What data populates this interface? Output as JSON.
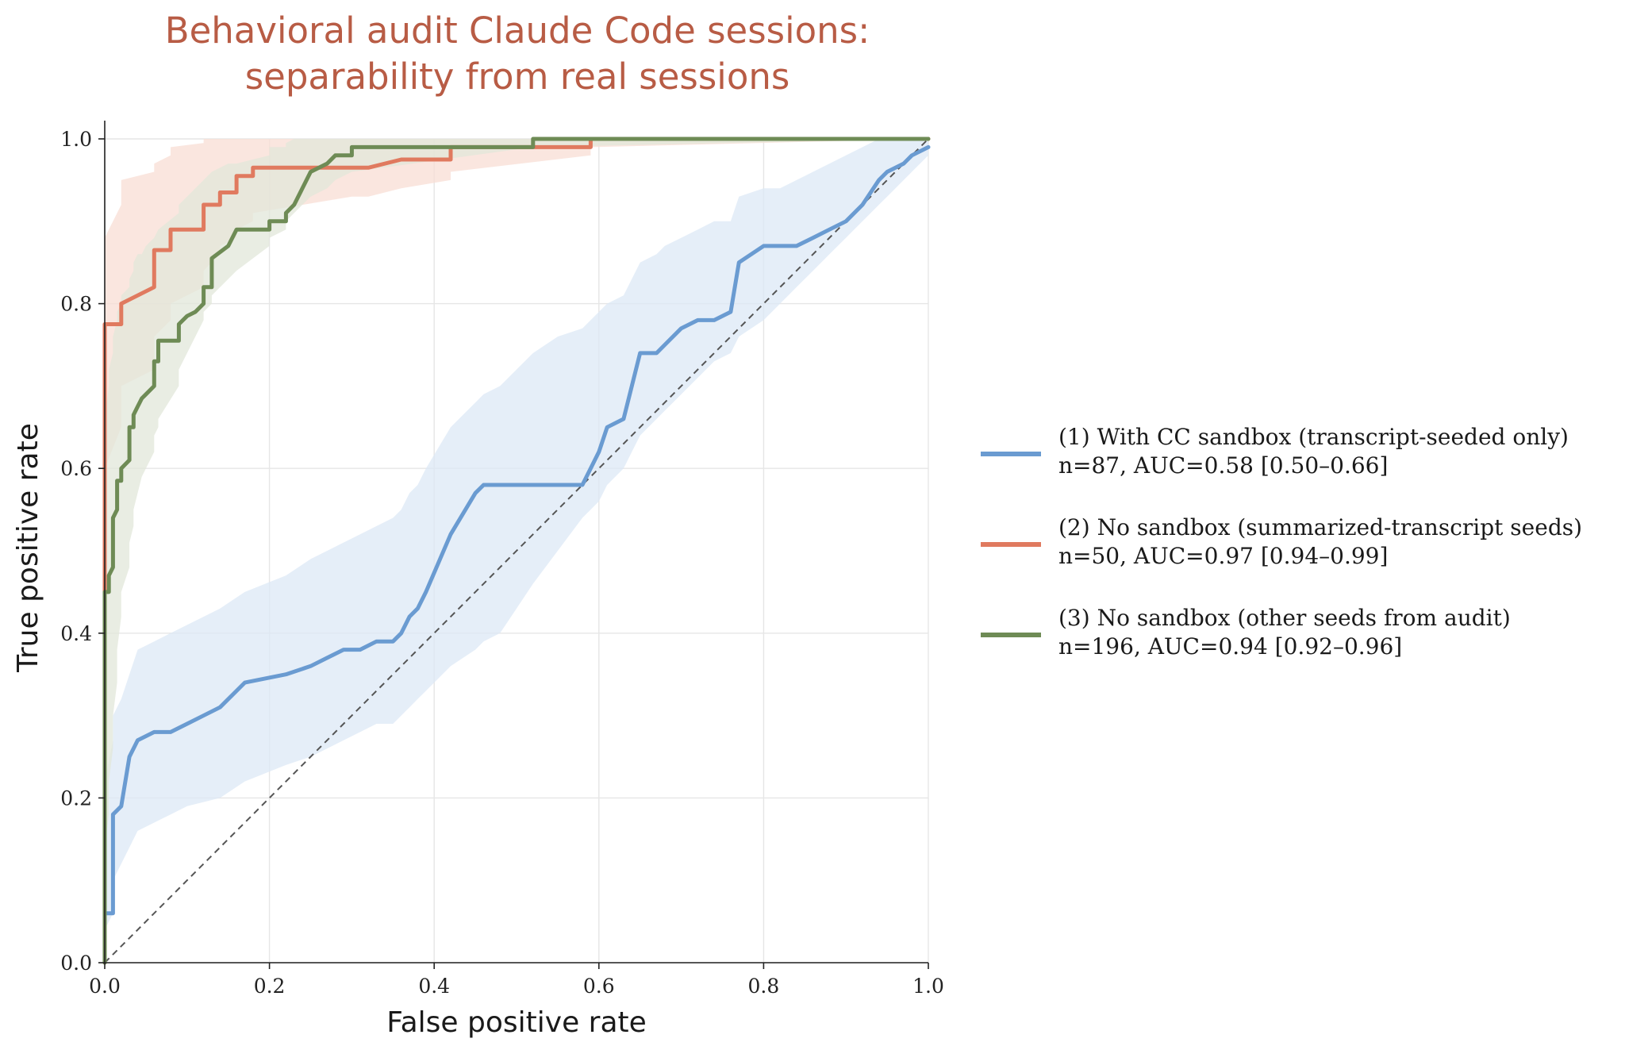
{
  "chart_data": {
    "type": "line",
    "title": [
      "Behavioral audit Claude Code sessions:",
      "separability from real sessions"
    ],
    "xlabel": "False positive rate",
    "ylabel": "True positive rate",
    "xlim": [
      0,
      1
    ],
    "ylim": [
      0,
      1
    ],
    "xticks": [
      "0.0",
      "0.2",
      "0.4",
      "0.6",
      "0.8",
      "1.0"
    ],
    "yticks": [
      "0.0",
      "0.2",
      "0.4",
      "0.6",
      "0.8",
      "1.0"
    ],
    "grid": true,
    "legend_position": "right",
    "diagonal": {
      "style": "dashed",
      "color": "#555555",
      "points": [
        [
          0,
          0
        ],
        [
          1,
          1
        ]
      ]
    },
    "series": [
      {
        "name": "(1) With CC sandbox (transcript-seeded only)",
        "stats": "n=87, AUC=0.58 [0.50–0.66]",
        "color": "#6A9BD1",
        "band_color": "#DCE8F5",
        "x": [
          0,
          0,
          0.01,
          0.01,
          0.02,
          0.03,
          0.04,
          0.06,
          0.08,
          0.1,
          0.14,
          0.17,
          0.22,
          0.25,
          0.27,
          0.29,
          0.31,
          0.33,
          0.35,
          0.36,
          0.37,
          0.38,
          0.39,
          0.42,
          0.45,
          0.46,
          0.48,
          0.5,
          0.52,
          0.55,
          0.58,
          0.59,
          0.6,
          0.61,
          0.63,
          0.64,
          0.65,
          0.67,
          0.68,
          0.7,
          0.72,
          0.74,
          0.76,
          0.77,
          0.8,
          0.82,
          0.84,
          0.86,
          0.88,
          0.9,
          0.92,
          0.94,
          0.95,
          0.97,
          0.98,
          1.0
        ],
        "y": [
          0,
          0.06,
          0.06,
          0.18,
          0.19,
          0.25,
          0.27,
          0.28,
          0.28,
          0.29,
          0.31,
          0.34,
          0.35,
          0.36,
          0.37,
          0.38,
          0.38,
          0.39,
          0.39,
          0.4,
          0.42,
          0.43,
          0.45,
          0.52,
          0.57,
          0.58,
          0.58,
          0.58,
          0.58,
          0.58,
          0.58,
          0.6,
          0.62,
          0.65,
          0.66,
          0.7,
          0.74,
          0.74,
          0.75,
          0.77,
          0.78,
          0.78,
          0.79,
          0.85,
          0.87,
          0.87,
          0.87,
          0.88,
          0.89,
          0.9,
          0.92,
          0.95,
          0.96,
          0.97,
          0.98,
          0.99
        ],
        "band_lower": [
          0.02,
          0.04,
          0.06,
          0.1,
          0.12,
          0.14,
          0.16,
          0.17,
          0.18,
          0.19,
          0.2,
          0.22,
          0.24,
          0.25,
          0.26,
          0.27,
          0.28,
          0.29,
          0.29,
          0.3,
          0.31,
          0.32,
          0.33,
          0.36,
          0.38,
          0.39,
          0.4,
          0.43,
          0.46,
          0.5,
          0.54,
          0.55,
          0.56,
          0.58,
          0.6,
          0.62,
          0.64,
          0.66,
          0.67,
          0.69,
          0.71,
          0.73,
          0.74,
          0.76,
          0.78,
          0.8,
          0.82,
          0.84,
          0.86,
          0.88,
          0.9,
          0.92,
          0.93,
          0.95,
          0.96,
          0.98
        ],
        "band_upper": [
          0.15,
          0.22,
          0.27,
          0.3,
          0.32,
          0.35,
          0.38,
          0.39,
          0.4,
          0.41,
          0.43,
          0.45,
          0.47,
          0.49,
          0.5,
          0.51,
          0.52,
          0.53,
          0.54,
          0.55,
          0.57,
          0.58,
          0.6,
          0.65,
          0.68,
          0.69,
          0.7,
          0.72,
          0.74,
          0.76,
          0.77,
          0.78,
          0.79,
          0.8,
          0.81,
          0.83,
          0.85,
          0.86,
          0.87,
          0.88,
          0.89,
          0.9,
          0.9,
          0.93,
          0.94,
          0.94,
          0.95,
          0.96,
          0.97,
          0.98,
          0.99,
          1.0,
          1.0,
          1.0,
          1.0,
          1.0
        ]
      },
      {
        "name": "(2) No sandbox (summarized-transcript seeds)",
        "stats": "n=50, AUC=0.97 [0.94–0.99]",
        "color": "#E07A5F",
        "band_color": "#F8DDD4",
        "x": [
          0,
          0,
          0.02,
          0.02,
          0.06,
          0.06,
          0.08,
          0.08,
          0.12,
          0.12,
          0.14,
          0.14,
          0.16,
          0.16,
          0.18,
          0.18,
          0.3,
          0.32,
          0.36,
          0.36,
          0.42,
          0.42,
          0.59,
          0.59,
          1.0
        ],
        "y": [
          0,
          0.775,
          0.775,
          0.8,
          0.82,
          0.865,
          0.865,
          0.89,
          0.89,
          0.92,
          0.92,
          0.935,
          0.935,
          0.955,
          0.955,
          0.965,
          0.965,
          0.965,
          0.975,
          0.975,
          0.975,
          0.99,
          0.99,
          1.0,
          1.0
        ],
        "band_lower": [
          0.45,
          0.6,
          0.65,
          0.7,
          0.72,
          0.76,
          0.78,
          0.8,
          0.82,
          0.84,
          0.86,
          0.87,
          0.88,
          0.89,
          0.9,
          0.91,
          0.93,
          0.93,
          0.94,
          0.94,
          0.95,
          0.96,
          0.98,
          0.99,
          1.0
        ],
        "band_upper": [
          0.88,
          0.88,
          0.92,
          0.95,
          0.96,
          0.97,
          0.98,
          0.99,
          0.995,
          1.0,
          1.0,
          1.0,
          1.0,
          1.0,
          1.0,
          1.0,
          1.0,
          1.0,
          1.0,
          1.0,
          1.0,
          1.0,
          1.0,
          1.0,
          1.0
        ]
      },
      {
        "name": "(3) No sandbox (other seeds from audit)",
        "stats": "n=196, AUC=0.94 [0.92–0.96]",
        "color": "#6E8B55",
        "band_color": "#E2E7DA",
        "x": [
          0,
          0,
          0.005,
          0.005,
          0.01,
          0.01,
          0.015,
          0.015,
          0.02,
          0.02,
          0.03,
          0.03,
          0.035,
          0.035,
          0.04,
          0.045,
          0.05,
          0.06,
          0.06,
          0.065,
          0.065,
          0.09,
          0.09,
          0.1,
          0.11,
          0.12,
          0.12,
          0.13,
          0.13,
          0.15,
          0.16,
          0.2,
          0.2,
          0.22,
          0.22,
          0.23,
          0.24,
          0.25,
          0.27,
          0.28,
          0.3,
          0.3,
          0.52,
          0.52,
          1.0
        ],
        "y": [
          0,
          0.45,
          0.45,
          0.47,
          0.48,
          0.54,
          0.55,
          0.585,
          0.585,
          0.6,
          0.61,
          0.65,
          0.65,
          0.665,
          0.675,
          0.685,
          0.69,
          0.7,
          0.73,
          0.73,
          0.755,
          0.755,
          0.775,
          0.785,
          0.79,
          0.8,
          0.82,
          0.82,
          0.855,
          0.87,
          0.89,
          0.89,
          0.9,
          0.9,
          0.91,
          0.92,
          0.94,
          0.96,
          0.97,
          0.98,
          0.98,
          0.99,
          0.99,
          1.0,
          1.0
        ],
        "band_lower": [
          0.05,
          0.14,
          0.18,
          0.22,
          0.26,
          0.3,
          0.34,
          0.38,
          0.42,
          0.45,
          0.48,
          0.51,
          0.53,
          0.55,
          0.57,
          0.59,
          0.6,
          0.62,
          0.64,
          0.65,
          0.66,
          0.7,
          0.72,
          0.74,
          0.76,
          0.78,
          0.79,
          0.8,
          0.81,
          0.83,
          0.84,
          0.87,
          0.88,
          0.89,
          0.9,
          0.91,
          0.92,
          0.93,
          0.94,
          0.95,
          0.96,
          0.96,
          0.99,
          0.99,
          1.0
        ],
        "band_upper": [
          0.62,
          0.66,
          0.7,
          0.72,
          0.74,
          0.76,
          0.78,
          0.79,
          0.8,
          0.81,
          0.82,
          0.83,
          0.84,
          0.85,
          0.86,
          0.86,
          0.87,
          0.88,
          0.88,
          0.89,
          0.89,
          0.91,
          0.92,
          0.93,
          0.94,
          0.95,
          0.95,
          0.96,
          0.96,
          0.97,
          0.97,
          0.98,
          0.99,
          0.99,
          0.995,
          1.0,
          1.0,
          1.0,
          1.0,
          1.0,
          1.0,
          1.0,
          1.0,
          1.0,
          1.0
        ]
      }
    ]
  }
}
